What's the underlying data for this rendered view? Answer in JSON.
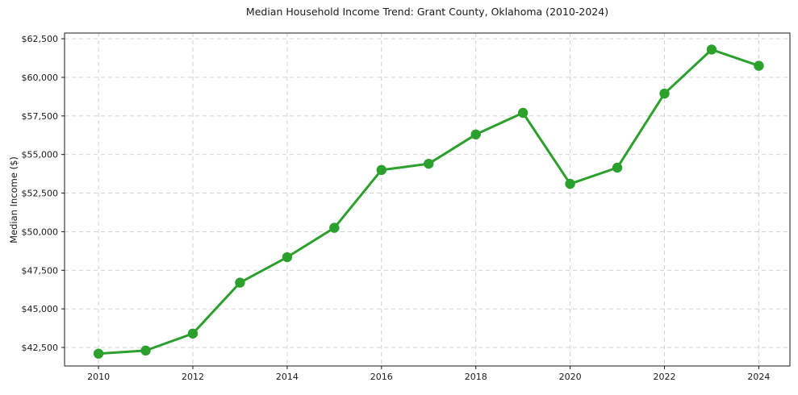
{
  "chart_data": {
    "type": "line",
    "title": "Median Household Income Trend: Grant County, Oklahoma (2010-2024)",
    "xlabel": "",
    "ylabel": "Median Income ($)",
    "x": [
      2010,
      2011,
      2012,
      2013,
      2014,
      2015,
      2016,
      2017,
      2018,
      2019,
      2020,
      2021,
      2022,
      2023,
      2024
    ],
    "series": [
      {
        "name": "Median Household Income",
        "values": [
          42100,
          42300,
          43400,
          46700,
          48350,
          50250,
          54000,
          54400,
          56300,
          57700,
          53100,
          54150,
          58950,
          61800,
          60750
        ]
      }
    ],
    "xlim": [
      2009.28,
      2024.66
    ],
    "ylim": [
      41300,
      62870
    ],
    "xticks": [
      2010,
      2012,
      2014,
      2016,
      2018,
      2020,
      2022,
      2024
    ],
    "xtick_labels": [
      "2010",
      "2012",
      "2014",
      "2016",
      "2018",
      "2020",
      "2022",
      "2024"
    ],
    "yticks": [
      42500,
      45000,
      47500,
      50000,
      52500,
      55000,
      57500,
      60000,
      62500
    ],
    "ytick_labels": [
      "$42,500",
      "$45,000",
      "$47,500",
      "$50,000",
      "$52,500",
      "$55,000",
      "$57,500",
      "$60,000",
      "$62,500"
    ],
    "grid": true,
    "legend": "none",
    "line_color": "#2ca02c",
    "grid_color": "#cdcdcd",
    "marker": "circle",
    "marker_radius": 6.2
  }
}
